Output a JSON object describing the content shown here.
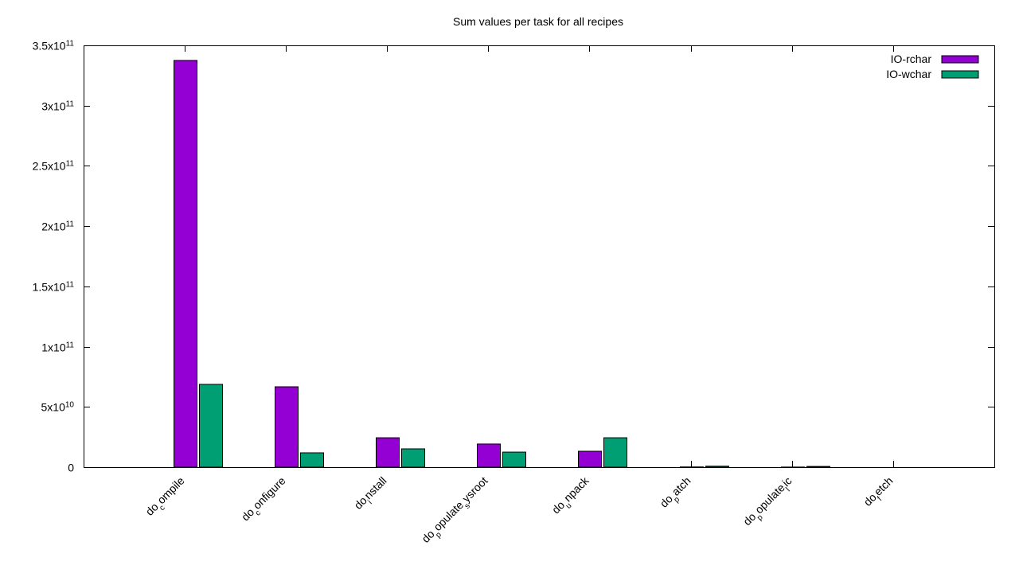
{
  "chart_data": {
    "type": "bar",
    "title": "Sum values per task for all recipes",
    "categories": [
      [
        "do",
        "c",
        "ompile"
      ],
      [
        "do",
        "c",
        "onfigure"
      ],
      [
        "do",
        "i",
        "nstall"
      ],
      [
        "do",
        "p",
        "opulate",
        "s",
        "ysroot"
      ],
      [
        "do",
        "u",
        "npack"
      ],
      [
        "do",
        "p",
        "atch"
      ],
      [
        "do",
        "p",
        "opulate",
        "l",
        "ic"
      ],
      [
        "do",
        "f",
        "etch"
      ]
    ],
    "series": [
      {
        "name": "IO-rchar",
        "color": "#9400d3",
        "values": [
          337500000000,
          66700000000,
          24400000000,
          19200000000,
          13200000000,
          200000000,
          100000000,
          0
        ]
      },
      {
        "name": "IO-wchar",
        "color": "#009e73",
        "values": [
          68700000000,
          11900000000,
          15200000000,
          12500000000,
          24400000000,
          800000000,
          600000000,
          0
        ]
      }
    ],
    "ylim": [
      0,
      350000000000
    ],
    "yticks": [
      0,
      {
        "value": 50000000000,
        "label": [
          "5x10",
          "10"
        ]
      },
      {
        "value": 100000000000,
        "label": [
          "1x10",
          "11"
        ]
      },
      {
        "value": 150000000000,
        "label": [
          "1.5x10",
          "11"
        ]
      },
      {
        "value": 200000000000,
        "label": [
          "2x10",
          "11"
        ]
      },
      {
        "value": 250000000000,
        "label": [
          "2.5x10",
          "11"
        ]
      },
      {
        "value": 300000000000,
        "label": [
          "3x10",
          "11"
        ]
      },
      {
        "value": 350000000000,
        "label": [
          "3.5x10",
          "11"
        ]
      }
    ],
    "legend": "top-right",
    "grid": false
  }
}
